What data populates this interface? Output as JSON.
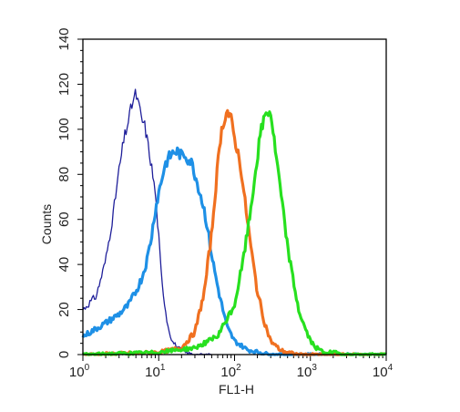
{
  "chart_data": {
    "type": "line",
    "xlabel": "FL1-H",
    "ylabel": "Counts",
    "xscale": "log",
    "xlim": [
      1,
      10000
    ],
    "ylim": [
      0,
      140
    ],
    "x_tick_labels": [
      {
        "base": "10",
        "exp": "0"
      },
      {
        "base": "10",
        "exp": "1"
      },
      {
        "base": "10",
        "exp": "2"
      },
      {
        "base": "10",
        "exp": "3"
      },
      {
        "base": "10",
        "exp": "4"
      }
    ],
    "y_tick_labels": [
      "0",
      "20",
      "40",
      "60",
      "80",
      "100",
      "120",
      "140"
    ],
    "legend": "none",
    "series": [
      {
        "color": "#1f1f9a",
        "x": [
          1.0,
          1.5,
          2.0,
          2.5,
          3.0,
          3.5,
          4.0,
          4.5,
          5.0,
          5.5,
          6.0,
          6.5,
          7.0,
          8.0,
          9.0,
          10.0,
          11.0,
          13.0,
          15.0,
          18.0,
          22.0,
          30.0,
          50.0
        ],
        "y": [
          20,
          26,
          42,
          62,
          82,
          96,
          104,
          112,
          116,
          110,
          104,
          102,
          96,
          84,
          72,
          52,
          32,
          14,
          6,
          3,
          1,
          0,
          0
        ]
      },
      {
        "color": "#1e90e6",
        "x": [
          1.0,
          2.0,
          3.0,
          4.0,
          5.0,
          6.0,
          7.0,
          8.0,
          9.0,
          10.0,
          11.0,
          12.0,
          14.0,
          16.0,
          18.0,
          20.0,
          22.0,
          24.0,
          26.0,
          28.0,
          30.0,
          35.0,
          40.0,
          45.0,
          50.0,
          60.0,
          70.0,
          80.0,
          100.0,
          150.0,
          300.0,
          1000.0,
          10000.0
        ],
        "y": [
          8,
          14,
          18,
          22,
          28,
          34,
          42,
          52,
          64,
          72,
          78,
          84,
          88,
          90,
          90,
          88,
          89,
          87,
          86,
          84,
          80,
          72,
          64,
          54,
          44,
          30,
          20,
          12,
          6,
          2,
          0,
          0,
          0
        ]
      },
      {
        "color": "#f07020",
        "x": [
          1.0,
          10.0,
          20.0,
          30.0,
          40.0,
          50.0,
          55.0,
          60.0,
          65.0,
          70.0,
          75.0,
          80.0,
          85.0,
          90.0,
          95.0,
          100.0,
          110.0,
          120.0,
          130.0,
          150.0,
          170.0,
          200.0,
          250.0,
          300.0,
          400.0,
          500.0,
          700.0,
          1000.0,
          10000.0
        ],
        "y": [
          0,
          1,
          3,
          10,
          28,
          54,
          70,
          84,
          96,
          102,
          106,
          108,
          106,
          104,
          100,
          96,
          90,
          84,
          74,
          58,
          44,
          28,
          14,
          6,
          2,
          1,
          0,
          0,
          0
        ]
      },
      {
        "color": "#27e01f",
        "x": [
          1.0,
          10.0,
          30.0,
          60.0,
          100.0,
          130.0,
          160.0,
          190.0,
          220.0,
          250.0,
          270.0,
          290.0,
          310.0,
          330.0,
          360.0,
          400.0,
          450.0,
          500.0,
          600.0,
          700.0,
          800.0,
          1000.0,
          1200.0,
          1500.0,
          2000.0,
          3000.0,
          10000.0
        ],
        "y": [
          0,
          1,
          3,
          8,
          22,
          42,
          62,
          82,
          98,
          106,
          108,
          108,
          104,
          96,
          86,
          74,
          60,
          48,
          32,
          20,
          14,
          6,
          3,
          1,
          1,
          0,
          0
        ]
      }
    ]
  }
}
